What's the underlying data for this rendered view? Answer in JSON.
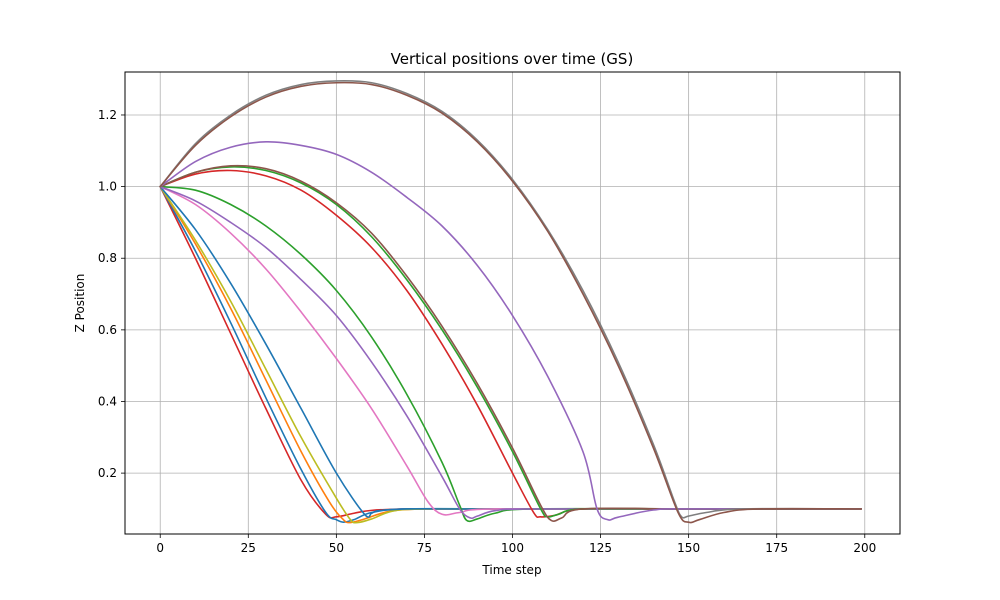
{
  "chart_data": {
    "type": "line",
    "title": "Vertical positions over time (GS)",
    "xlabel": "Time step",
    "ylabel": "Z Position",
    "xlim": [
      -10,
      210
    ],
    "ylim": [
      0.03,
      1.32
    ],
    "xticks": [
      0,
      25,
      50,
      75,
      100,
      125,
      150,
      175,
      200
    ],
    "yticks": [
      0.2,
      0.4,
      0.6,
      0.8,
      1.0,
      1.2
    ],
    "grid": true,
    "legend": "none",
    "series": [
      {
        "color": "#d62728",
        "x": [
          0,
          10,
          20,
          30,
          40,
          47,
          50,
          55,
          60,
          70,
          80,
          100,
          150,
          199
        ],
        "y": [
          1.0,
          0.8,
          0.59,
          0.38,
          0.18,
          0.085,
          0.078,
          0.088,
          0.096,
          0.1,
          0.1,
          0.1,
          0.1,
          0.1
        ]
      },
      {
        "color": "#1f77b4",
        "x": [
          0,
          10,
          20,
          30,
          40,
          47,
          50,
          52,
          55,
          60,
          70,
          100,
          150,
          199
        ],
        "y": [
          1.0,
          0.82,
          0.62,
          0.41,
          0.21,
          0.09,
          0.07,
          0.063,
          0.07,
          0.09,
          0.1,
          0.1,
          0.1,
          0.1
        ]
      },
      {
        "color": "#ff7f0e",
        "x": [
          0,
          10,
          20,
          30,
          40,
          48,
          52,
          54,
          58,
          65,
          75,
          100,
          150,
          199
        ],
        "y": [
          1.0,
          0.84,
          0.66,
          0.46,
          0.26,
          0.12,
          0.07,
          0.062,
          0.072,
          0.093,
          0.1,
          0.1,
          0.1,
          0.1
        ]
      },
      {
        "color": "#bcbd22",
        "x": [
          0,
          10,
          20,
          30,
          40,
          50,
          54,
          56,
          60,
          66,
          75,
          100,
          150,
          199
        ],
        "y": [
          1.0,
          0.85,
          0.68,
          0.49,
          0.3,
          0.13,
          0.07,
          0.062,
          0.072,
          0.094,
          0.1,
          0.1,
          0.1,
          0.1
        ]
      },
      {
        "color": "#1f77b4",
        "x": [
          0,
          10,
          20,
          30,
          40,
          50,
          58,
          60,
          62,
          70,
          80,
          100,
          150,
          199
        ],
        "y": [
          1.0,
          0.88,
          0.73,
          0.56,
          0.38,
          0.2,
          0.085,
          0.088,
          0.095,
          0.1,
          0.1,
          0.1,
          0.1,
          0.1
        ]
      },
      {
        "color": "#e377c2",
        "x": [
          0,
          10,
          20,
          30,
          40,
          50,
          60,
          70,
          76,
          80,
          85,
          95,
          150,
          199
        ],
        "y": [
          1.0,
          0.95,
          0.87,
          0.77,
          0.65,
          0.52,
          0.38,
          0.22,
          0.12,
          0.085,
          0.09,
          0.1,
          0.1,
          0.1
        ]
      },
      {
        "color": "#2ca02c",
        "x": [
          0,
          10,
          20,
          30,
          40,
          50,
          60,
          70,
          80,
          85,
          87,
          90,
          95,
          105,
          150,
          199
        ],
        "y": [
          1.0,
          0.99,
          0.95,
          0.89,
          0.81,
          0.71,
          0.58,
          0.42,
          0.23,
          0.11,
          0.068,
          0.072,
          0.088,
          0.1,
          0.1,
          0.1
        ]
      },
      {
        "color": "#9467bd",
        "x": [
          0,
          10,
          20,
          30,
          40,
          50,
          60,
          70,
          80,
          85,
          88,
          90,
          95,
          105,
          150,
          199
        ],
        "y": [
          1.0,
          0.96,
          0.9,
          0.83,
          0.74,
          0.64,
          0.51,
          0.36,
          0.19,
          0.1,
          0.075,
          0.08,
          0.095,
          0.1,
          0.1,
          0.1
        ]
      },
      {
        "color": "#d62728",
        "x": [
          0,
          10,
          20,
          30,
          40,
          50,
          60,
          70,
          80,
          90,
          100,
          106,
          108,
          112,
          120,
          150,
          199
        ],
        "y": [
          1.0,
          1.035,
          1.045,
          1.03,
          0.99,
          0.92,
          0.83,
          0.71,
          0.56,
          0.39,
          0.2,
          0.09,
          0.078,
          0.082,
          0.1,
          0.1,
          0.1
        ]
      },
      {
        "color": "#2ca02c",
        "x": [
          0,
          10,
          20,
          30,
          40,
          50,
          60,
          70,
          80,
          90,
          100,
          108,
          110,
          113,
          120,
          150,
          199
        ],
        "y": [
          1.0,
          1.04,
          1.055,
          1.045,
          1.01,
          0.95,
          0.86,
          0.74,
          0.6,
          0.44,
          0.26,
          0.1,
          0.078,
          0.085,
          0.1,
          0.1,
          0.1
        ]
      },
      {
        "color": "#8c564b",
        "x": [
          0,
          10,
          20,
          30,
          40,
          50,
          60,
          70,
          80,
          90,
          100,
          108,
          111,
          114,
          120,
          150,
          199
        ],
        "y": [
          1.0,
          1.04,
          1.058,
          1.05,
          1.015,
          0.955,
          0.87,
          0.75,
          0.61,
          0.45,
          0.27,
          0.11,
          0.068,
          0.075,
          0.1,
          0.1,
          0.1
        ]
      },
      {
        "color": "#9467bd",
        "x": [
          0,
          10,
          20,
          30,
          40,
          50,
          60,
          70,
          80,
          90,
          100,
          110,
          120,
          124,
          127,
          130,
          140,
          150,
          199
        ],
        "y": [
          1.0,
          1.07,
          1.11,
          1.125,
          1.115,
          1.09,
          1.04,
          0.97,
          0.89,
          0.78,
          0.64,
          0.47,
          0.26,
          0.1,
          0.07,
          0.077,
          0.097,
          0.1,
          0.1
        ]
      },
      {
        "color": "#7f7f7f",
        "x": [
          0,
          10,
          20,
          30,
          40,
          50,
          60,
          70,
          80,
          90,
          100,
          110,
          120,
          130,
          140,
          146,
          148,
          150,
          155,
          165,
          199
        ],
        "y": [
          1.0,
          1.12,
          1.2,
          1.255,
          1.285,
          1.295,
          1.29,
          1.26,
          1.21,
          1.13,
          1.02,
          0.88,
          0.71,
          0.51,
          0.28,
          0.12,
          0.078,
          0.08,
          0.09,
          0.1,
          0.1
        ]
      },
      {
        "color": "#8c564b",
        "x": [
          0,
          10,
          20,
          30,
          40,
          50,
          60,
          70,
          80,
          90,
          100,
          110,
          120,
          130,
          140,
          147,
          150,
          153,
          160,
          170,
          199
        ],
        "y": [
          1.0,
          1.115,
          1.195,
          1.25,
          1.28,
          1.29,
          1.285,
          1.255,
          1.205,
          1.125,
          1.015,
          0.875,
          0.7,
          0.5,
          0.27,
          0.09,
          0.063,
          0.07,
          0.09,
          0.1,
          0.1
        ]
      }
    ]
  }
}
